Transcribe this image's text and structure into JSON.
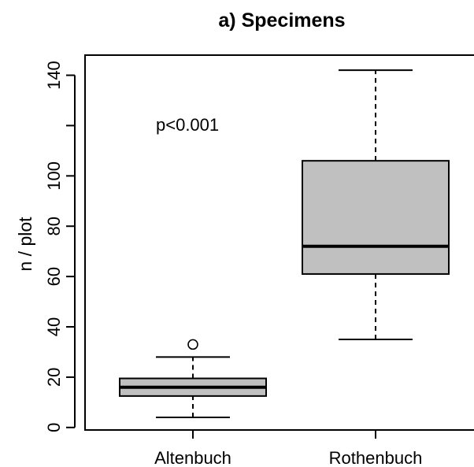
{
  "chart_data": {
    "type": "boxplot",
    "title": "a) Specimens",
    "ylabel": "n / plot",
    "xlabel": "",
    "ylim": [
      -1,
      148
    ],
    "yticks": [
      0,
      20,
      40,
      60,
      80,
      100,
      120,
      140
    ],
    "ytick_labels": [
      "0",
      "20",
      "40",
      "60",
      "80",
      "100",
      "",
      "140"
    ],
    "grid": false,
    "annotation": "p<0.001",
    "box_color": "#c0c0c0",
    "categories": [
      "Altenbuch",
      "Rothenbuch"
    ],
    "boxes": [
      {
        "category": "Altenbuch",
        "whisker_low": 4,
        "q1": 12.5,
        "median": 16,
        "q3": 19.5,
        "whisker_high": 28,
        "outliers": [
          33
        ]
      },
      {
        "category": "Rothenbuch",
        "whisker_low": 35,
        "q1": 61,
        "median": 72,
        "q3": 106,
        "whisker_high": 142,
        "outliers": []
      }
    ]
  }
}
